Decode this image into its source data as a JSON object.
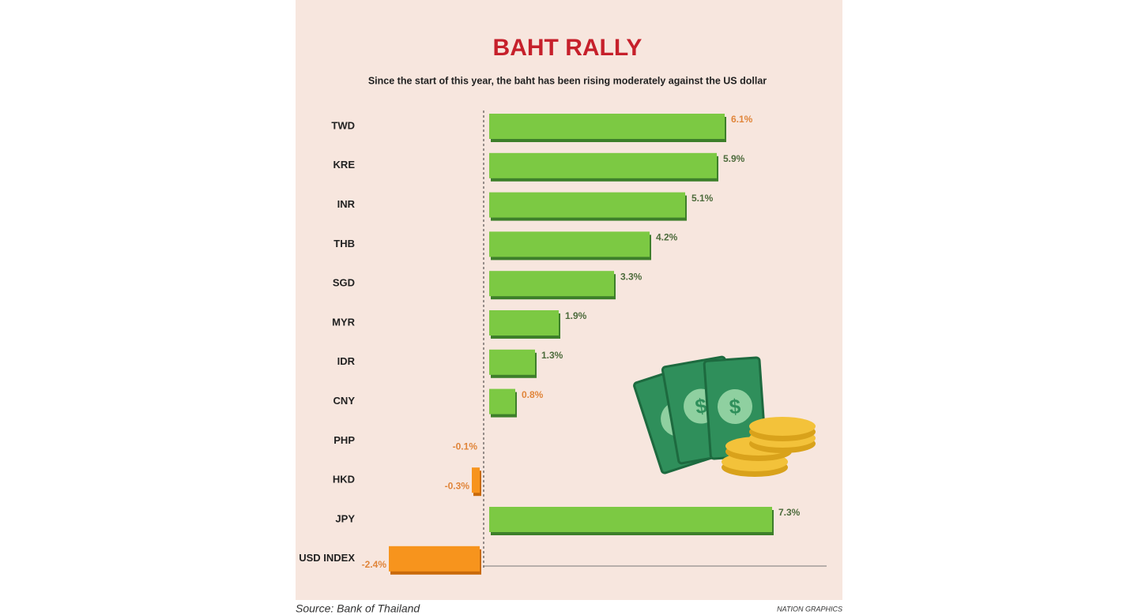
{
  "chart_data": {
    "type": "hbar",
    "title": "BAHT RALLY",
    "subtitle": "Since the start of this year, the baht has been rising moderately against the US dollar",
    "categories": [
      "TWD",
      "KRE",
      "INR",
      "THB",
      "SGD",
      "MYR",
      "IDR",
      "CNY",
      "PHP",
      "HKD",
      "JPY",
      "USD INDEX"
    ],
    "values": [
      6.1,
      5.9,
      5.1,
      4.2,
      3.3,
      1.9,
      1.3,
      0.8,
      -0.1,
      -0.3,
      7.3,
      -2.4
    ],
    "value_labels": [
      "6.1%",
      "5.9%",
      "5.1%",
      "4.2%",
      "3.3%",
      "1.9%",
      "1.3%",
      "0.8%",
      "-0.1%",
      "-0.3%",
      "7.3%",
      "-2.4%"
    ],
    "value_label_colors": [
      "#e0853a",
      "#4d6b3c",
      "#4d6b3c",
      "#4d6b3c",
      "#4d6b3c",
      "#4d6b3c",
      "#4d6b3c",
      "#e0853a",
      "#e0853a",
      "#e0853a",
      "#4d6b3c",
      "#e0853a"
    ],
    "positive_color": "#7cc943",
    "negative_color": "#f7941d",
    "xlim": [
      -2.8,
      8.6
    ],
    "source": "Source: Bank of Thailand",
    "credit": "NATION GRAPHICS"
  }
}
